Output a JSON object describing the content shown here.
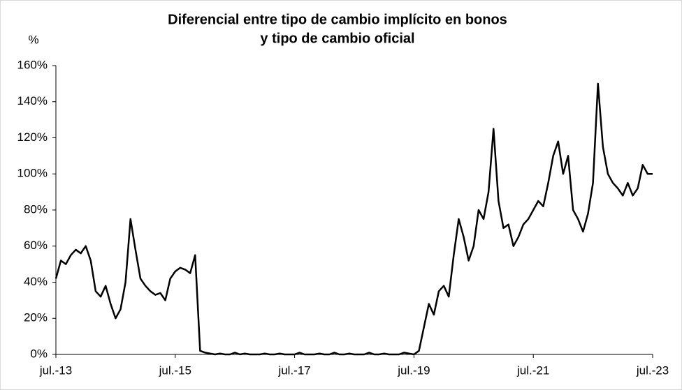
{
  "chart_data": {
    "type": "line",
    "title": [
      "Diferencial entre tipo de cambio implícito en bonos",
      "y tipo de cambio oficial"
    ],
    "y_label": "%",
    "categories": [
      "jul.-13",
      null,
      null,
      null,
      null,
      null,
      null,
      null,
      null,
      null,
      null,
      null,
      null,
      null,
      null,
      null,
      null,
      null,
      null,
      null,
      null,
      null,
      null,
      null,
      "jul.-15",
      null,
      null,
      null,
      null,
      null,
      null,
      null,
      null,
      null,
      null,
      null,
      null,
      null,
      null,
      null,
      null,
      null,
      null,
      null,
      null,
      null,
      null,
      null,
      "jul.-17",
      null,
      null,
      null,
      null,
      null,
      null,
      null,
      null,
      null,
      null,
      null,
      null,
      null,
      null,
      null,
      null,
      null,
      null,
      null,
      null,
      null,
      null,
      null,
      "jul.-19",
      null,
      null,
      null,
      null,
      null,
      null,
      null,
      null,
      null,
      null,
      null,
      null,
      null,
      null,
      null,
      null,
      null,
      null,
      null,
      null,
      null,
      null,
      null,
      "jul.-21",
      null,
      null,
      null,
      null,
      null,
      null,
      null,
      null,
      null,
      null,
      null,
      null,
      null,
      null,
      null,
      null,
      null,
      null,
      null,
      null,
      null,
      null,
      null,
      "jul.-23"
    ],
    "series": [
      {
        "name": "Diferencial",
        "color": "#000000",
        "values": [
          42,
          52,
          50,
          55,
          58,
          56,
          60,
          52,
          35,
          32,
          38,
          28,
          20,
          25,
          40,
          75,
          58,
          42,
          38,
          35,
          33,
          34,
          30,
          42,
          46,
          48,
          47,
          45,
          55,
          2,
          1,
          0.5,
          0,
          0.5,
          0,
          0,
          1,
          0,
          0.5,
          0,
          0,
          0,
          0.5,
          0,
          0,
          0.5,
          0,
          0,
          0,
          1,
          0,
          0,
          0,
          0.5,
          0,
          0,
          1,
          0,
          0,
          0.5,
          0,
          0,
          0,
          1,
          0,
          0,
          0.5,
          0,
          0,
          0,
          1,
          0.5,
          0,
          2,
          15,
          28,
          22,
          35,
          38,
          32,
          55,
          75,
          65,
          52,
          60,
          80,
          75,
          90,
          125,
          85,
          70,
          72,
          60,
          65,
          72,
          75,
          80,
          85,
          82,
          95,
          110,
          118,
          100,
          110,
          80,
          75,
          68,
          78,
          95,
          150,
          115,
          100,
          95,
          92,
          88,
          95,
          88,
          92,
          105,
          100,
          100
        ]
      }
    ],
    "ylim": [
      0,
      160
    ],
    "yticks": [
      {
        "value": 0,
        "label": "0%"
      },
      {
        "value": 20,
        "label": "20%"
      },
      {
        "value": 40,
        "label": "40%"
      },
      {
        "value": 60,
        "label": "60%"
      },
      {
        "value": 80,
        "label": "80%"
      },
      {
        "value": 100,
        "label": "100%"
      },
      {
        "value": 120,
        "label": "120%"
      },
      {
        "value": 140,
        "label": "140%"
      },
      {
        "value": 160,
        "label": "160%"
      }
    ],
    "grid": false
  }
}
